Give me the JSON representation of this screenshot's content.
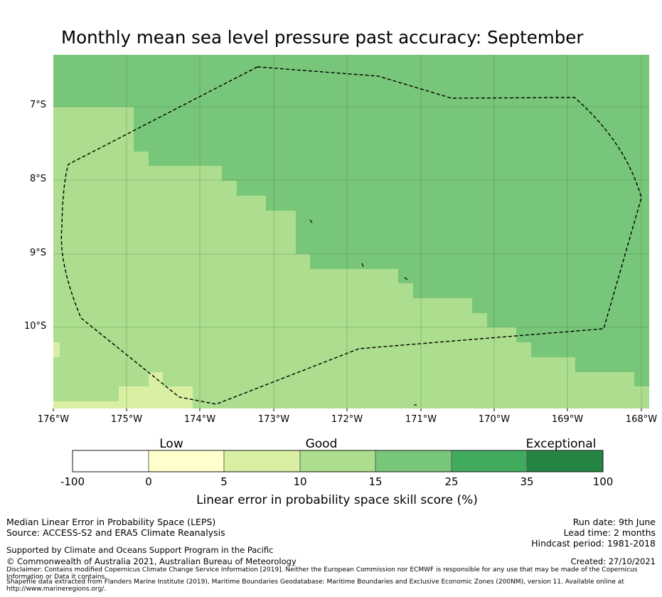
{
  "title": "Monthly mean sea level pressure past accuracy: September",
  "map": {
    "lat_labels": [
      "7°S",
      "8°S",
      "9°S",
      "10°S"
    ],
    "lon_labels": [
      "176°W",
      "175°W",
      "174°W",
      "173°W",
      "172°W",
      "171°W",
      "170°W",
      "169°W",
      "168°W"
    ],
    "lon_range": [
      -176,
      -168
    ],
    "lat_range": [
      -11.1,
      -6.3
    ],
    "colors": {
      "cat_15_25": "#78c679",
      "cat_10_15": "#addd8e",
      "cat_5_10": "#d9f0a3",
      "boundary": "#000000"
    }
  },
  "colorbar": {
    "categories": [
      "Low",
      "Good",
      "Exceptional"
    ],
    "ticks": [
      "-100",
      "0",
      "5",
      "10",
      "15",
      "25",
      "35",
      "100"
    ],
    "colors": [
      "#ffffff",
      "#ffffcc",
      "#d9f0a3",
      "#addd8e",
      "#78c679",
      "#41ab5d",
      "#238443"
    ],
    "label": "Linear error in probability space skill score (%)"
  },
  "footer": {
    "left1": "Median Linear Error in Probability Space (LEPS)",
    "left2": "Source: ACCESS-S2 and ERA5 Climate Reanalysis",
    "support": "Supported by Climate and Oceans Support Program in the Pacific",
    "copyright": "© Commonwealth of Australia 2021, Australian Bureau of Meteorology",
    "disclaimer": "Disclaimer: Contains modified Copernicus Climate Change Service Information [2019]. Neither the European Commission nor ECMWF is responsible for any use that may be made of the Copernicus Information or Data it contains.",
    "shapefile": "Shapefile data extracted from Flanders Marine Institute (2019), Maritime Boundaries Geodatabase: Maritime Boundaries and Exclusive Economic Zones (200NM), version 11. Available online at http://www.marineregions.org/.",
    "run_date": "Run date: 9th June",
    "lead_time": "Lead time: 2 months",
    "hindcast": "Hindcast period: 1981-2018",
    "created": "Created: 27/10/2021"
  }
}
